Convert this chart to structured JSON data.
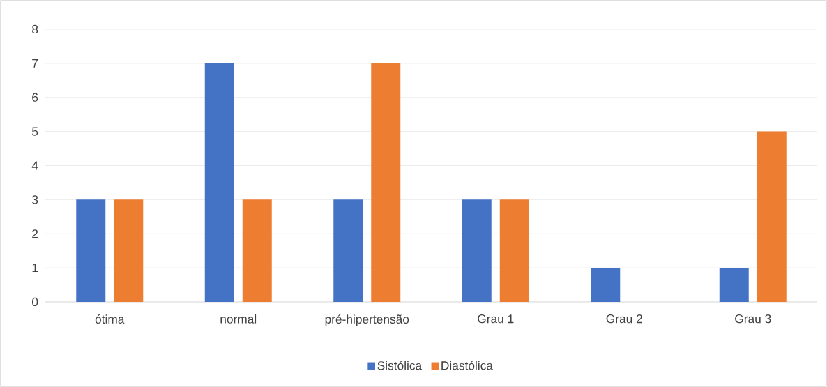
{
  "chart_data": {
    "type": "bar",
    "categories": [
      "ótima",
      "normal",
      "pré-hipertensão",
      "Grau 1",
      "Grau 2",
      "Grau 3"
    ],
    "series": [
      {
        "name": "Sistólica",
        "color": "#4472c4",
        "values": [
          3,
          7,
          3,
          3,
          1,
          1
        ]
      },
      {
        "name": "Diastólica",
        "color": "#ed7d31",
        "values": [
          3,
          3,
          7,
          3,
          0,
          5
        ]
      }
    ],
    "ylim": [
      0,
      8
    ],
    "yticks": [
      0,
      1,
      2,
      3,
      4,
      5,
      6,
      7,
      8
    ],
    "grid": "y",
    "legend": "bottom"
  }
}
